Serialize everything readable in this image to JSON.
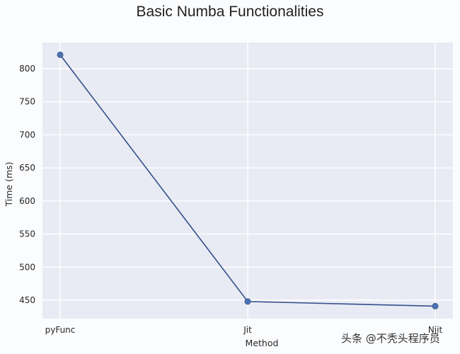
{
  "chart_data": {
    "type": "line",
    "title": "Basic Numba Functionalities",
    "xlabel": "Method",
    "ylabel": "Time (ms)",
    "categories": [
      "pyFunc",
      "Jit",
      "Njit"
    ],
    "series": [
      {
        "name": "Time (ms)",
        "values": [
          821,
          448,
          441
        ],
        "color": "#34508a",
        "marker": "circle",
        "marker_color": "#4c72b0"
      }
    ],
    "yticks": [
      450,
      500,
      550,
      600,
      650,
      700,
      750,
      800
    ],
    "ylim": [
      428,
      842
    ],
    "grid": true,
    "style": "seaborn",
    "background": "#e9ebf4"
  },
  "watermark": "头条 @不秃头程序员"
}
